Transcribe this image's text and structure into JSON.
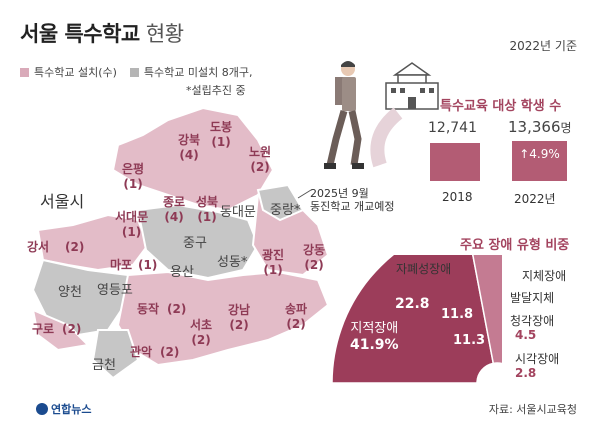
{
  "header": {
    "title_bold": "서울 특수학교",
    "title_light": "현황",
    "date": "2022년 기준"
  },
  "legend": {
    "installed": "특수학교 설치(수)",
    "not_installed": "특수학교 미설치 8개구,",
    "note": "*설립추진 중",
    "colors": {
      "installed": "#e3bcc8",
      "not_installed": "#c6c6c6",
      "accent": "#a3445f"
    }
  },
  "map": {
    "city_label": "서울시",
    "annotation": {
      "line1": "2025년 9월",
      "line2": "동진학교 개교예정"
    },
    "districts": [
      {
        "name": "도봉",
        "count": "(1)"
      },
      {
        "name": "강북",
        "count": "(4)"
      },
      {
        "name": "노원",
        "count": "(2)"
      },
      {
        "name": "은평",
        "count": "(1)"
      },
      {
        "name": "종로",
        "count": "(4)"
      },
      {
        "name": "성북",
        "count": "(1)"
      },
      {
        "name": "서대문",
        "count": "(1)"
      },
      {
        "name": "강서",
        "count": "(2)"
      },
      {
        "name": "마포",
        "count": "(1)"
      },
      {
        "name": "광진",
        "count": "(1)"
      },
      {
        "name": "강동",
        "count": "(2)"
      },
      {
        "name": "동작",
        "count": "(2)"
      },
      {
        "name": "구로",
        "count": "(2)"
      },
      {
        "name": "강남",
        "count": "(2)"
      },
      {
        "name": "서초",
        "count": "(2)"
      },
      {
        "name": "송파",
        "count": "(2)"
      },
      {
        "name": "관악",
        "count": "(2)"
      }
    ],
    "unassigned": [
      "동대문",
      "중랑*",
      "중구",
      "용산",
      "성동*",
      "양천",
      "영등포",
      "금천"
    ]
  },
  "students": {
    "title": "특수교육 대상 학생 수",
    "bars": [
      {
        "year": "2018",
        "value": "12,741"
      },
      {
        "year": "2022년",
        "value": "13,366",
        "unit": "명",
        "change": "↑4.9%"
      }
    ]
  },
  "disability": {
    "title": "주요 장애 유형 비중",
    "slices": [
      {
        "label": "지적장애",
        "value": 41.9,
        "display": "41.9%",
        "color": "#9c3d5a"
      },
      {
        "label": "자폐성장애",
        "value": 22.8,
        "display": "22.8",
        "color": "#c47b92"
      },
      {
        "label": "지체장애",
        "value": 11.8,
        "display": "11.8",
        "color": "#dfa9ba"
      },
      {
        "label": "발달지체",
        "value": 11.3,
        "display": "11.3",
        "color": "#edcad4"
      },
      {
        "label": "청각장애",
        "value": 4.5,
        "display": "4.5",
        "color": "#f4dee5"
      },
      {
        "label": "시각장애",
        "value": 2.8,
        "display": "2.8",
        "color": "#c9c9de"
      }
    ]
  },
  "footer": {
    "source": "자료: 서울시교육청",
    "logo": "연합뉴스"
  }
}
